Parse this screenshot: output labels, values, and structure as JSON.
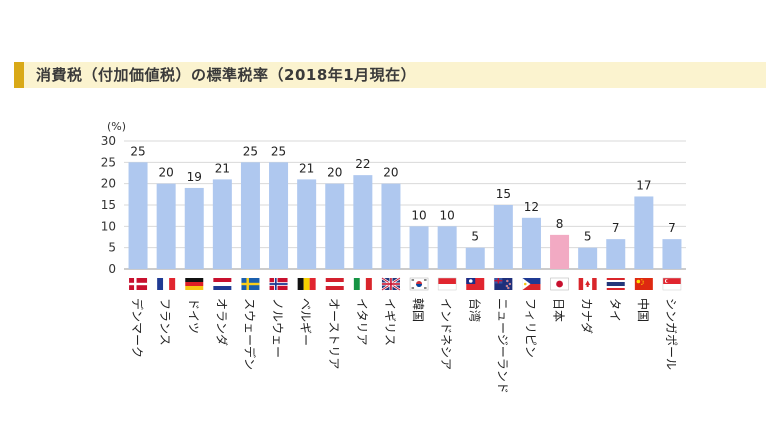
{
  "title": "消費税（付加価値税）の標準税率（2018年1月現在）",
  "chart_data": {
    "type": "bar",
    "y_unit": "(%)",
    "ylim": [
      0,
      30
    ],
    "yticks": [
      0,
      5,
      10,
      15,
      20,
      25,
      30
    ],
    "grid": true,
    "categories": [
      "デンマーク",
      "フランス",
      "ドイツ",
      "オランダ",
      "スウェーデン",
      "ノルウェー",
      "ベルギー",
      "オーストリア",
      "イタリア",
      "イギリス",
      "韓国",
      "インドネシア",
      "台湾",
      "ニュージーランド",
      "フィリピン",
      "日本",
      "カナダ",
      "タイ",
      "中国",
      "シンガポール"
    ],
    "values": [
      25,
      20,
      19,
      21,
      25,
      25,
      21,
      20,
      22,
      20,
      10,
      10,
      5,
      15,
      12,
      8,
      5,
      7,
      17,
      7
    ],
    "colors": {
      "default": "#afc8ef",
      "highlight": "#f2aac3"
    },
    "highlight_category": "日本",
    "flags": [
      "denmark-flag",
      "france-flag",
      "germany-flag",
      "netherlands-flag",
      "sweden-flag",
      "norway-flag",
      "belgium-flag",
      "austria-flag",
      "italy-flag",
      "uk-flag",
      "korea-flag",
      "indonesia-flag",
      "taiwan-flag",
      "new-zealand-flag",
      "philippines-flag",
      "japan-flag",
      "canada-flag",
      "thailand-flag",
      "china-flag",
      "singapore-flag"
    ]
  }
}
